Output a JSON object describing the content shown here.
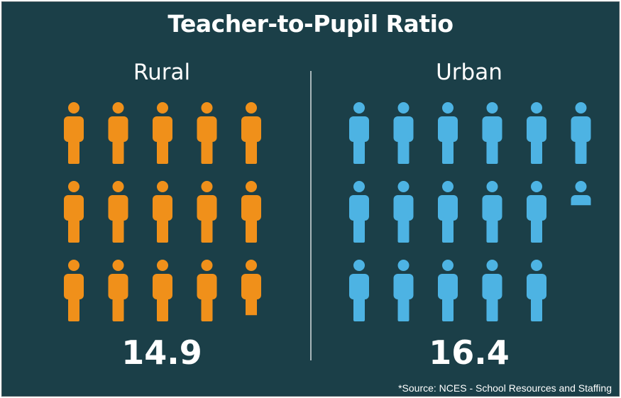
{
  "title": "Teacher-to-Pupil Ratio",
  "source": "*Source: NCES - School Resources and Staffing",
  "chart_data": {
    "type": "pictogram",
    "title": "Teacher-to-Pupil Ratio",
    "groups": [
      {
        "name": "Rural",
        "value": 14.9,
        "value_label": "14.9",
        "color": "#f0901a",
        "columns": 5
      },
      {
        "name": "Urban",
        "value": 16.4,
        "value_label": "16.4",
        "color": "#4db3e3",
        "columns": 6
      }
    ]
  }
}
